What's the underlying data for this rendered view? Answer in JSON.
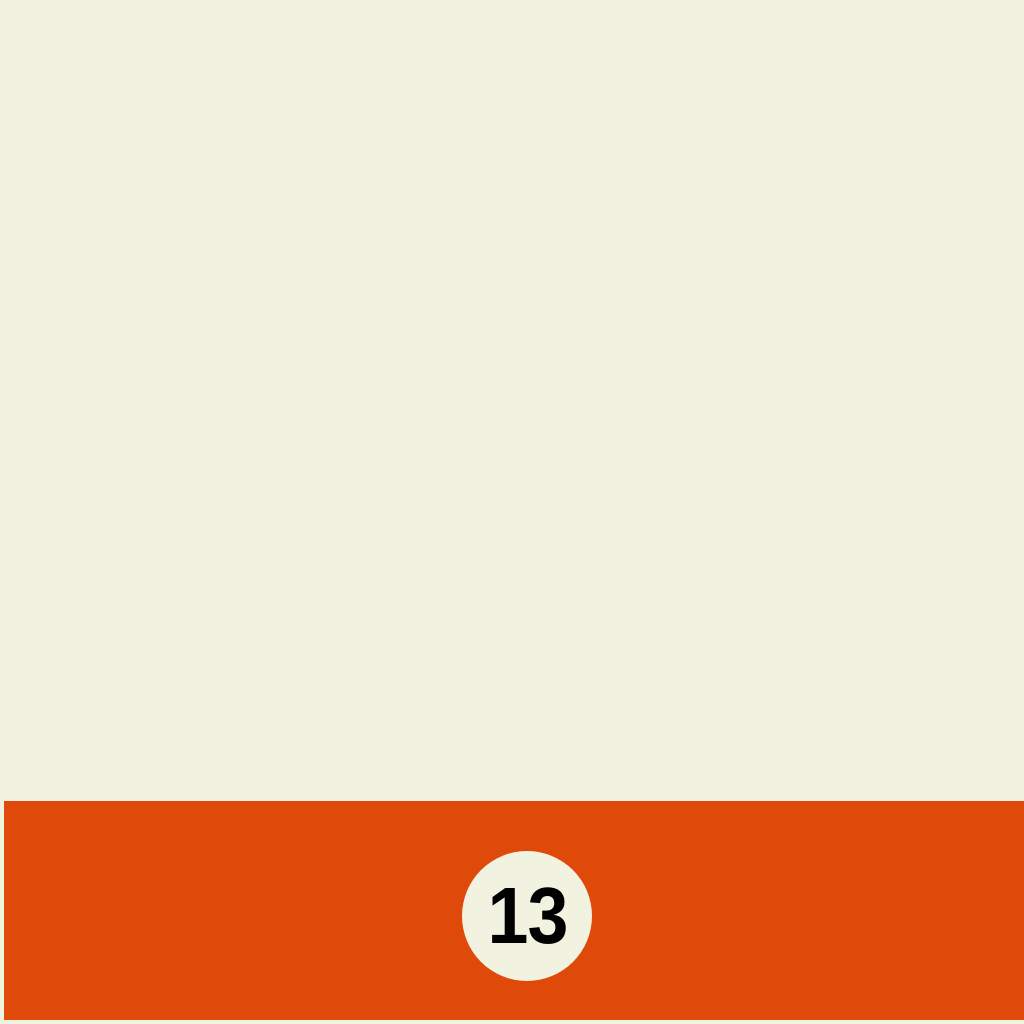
{
  "ball": {
    "number": "13",
    "type": "striped billiard ball close-up",
    "stripe_color": "#df4a0a",
    "body_color": "#f2f2e0",
    "number_color": "#000000"
  }
}
